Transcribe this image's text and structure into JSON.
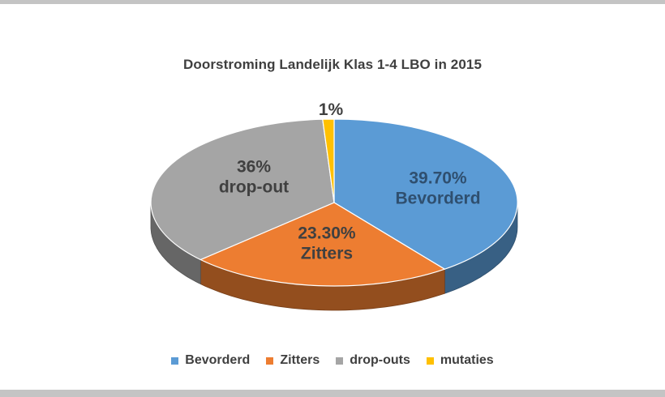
{
  "chart_data": {
    "type": "pie",
    "title": "Doorstroming Landelijk Klas 1-4 LBO in 2015",
    "categories": [
      "Bevorderd",
      "Zitters",
      "drop-outs",
      "mutaties"
    ],
    "values": [
      39.7,
      23.3,
      36,
      1
    ],
    "data_labels": [
      [
        "39.70%",
        "Bevorderd"
      ],
      [
        "23.30%",
        "Zitters"
      ],
      [
        "36%",
        "drop-out"
      ],
      [
        "1%"
      ]
    ],
    "colors": [
      "#5b9bd5",
      "#ed7d31",
      "#a5a5a5",
      "#ffc000"
    ],
    "label_colors": [
      "#2f4f6f",
      "#404040",
      "#404040",
      "#404040"
    ],
    "style": "3d-pie",
    "legend_position": "bottom"
  }
}
